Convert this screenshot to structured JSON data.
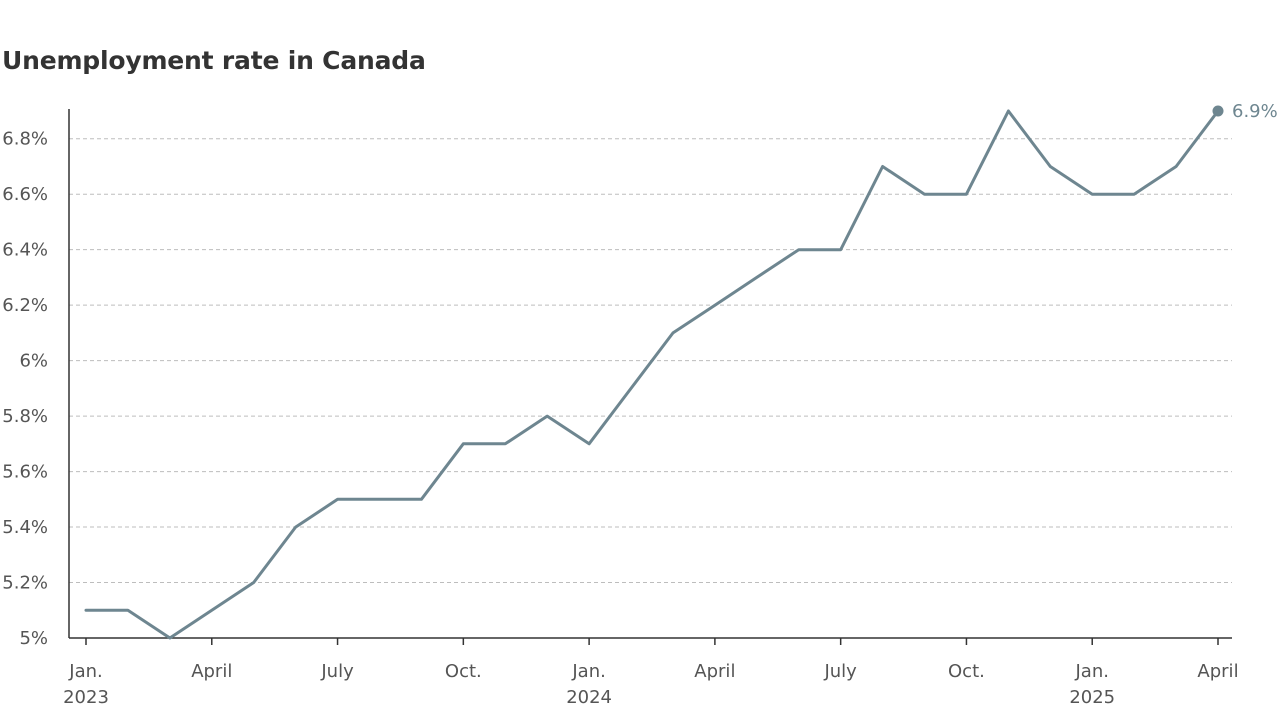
{
  "chart_data": {
    "type": "line",
    "title": "Unemployment rate in Canada",
    "xlabel": "",
    "ylabel": "",
    "ylim": [
      5.0,
      6.9
    ],
    "y_ticks": [
      {
        "value": 5.0,
        "label": "5%"
      },
      {
        "value": 5.2,
        "label": "5.2%"
      },
      {
        "value": 5.4,
        "label": "5.4%"
      },
      {
        "value": 5.6,
        "label": "5.6%"
      },
      {
        "value": 5.8,
        "label": "5.8%"
      },
      {
        "value": 6.0,
        "label": "6%"
      },
      {
        "value": 6.2,
        "label": "6.2%"
      },
      {
        "value": 6.4,
        "label": "6.4%"
      },
      {
        "value": 6.6,
        "label": "6.6%"
      },
      {
        "value": 6.8,
        "label": "6.8%"
      }
    ],
    "x_ticks": [
      {
        "index": 0,
        "label": "Jan.",
        "sublabel": "2023"
      },
      {
        "index": 3,
        "label": "April",
        "sublabel": ""
      },
      {
        "index": 6,
        "label": "July",
        "sublabel": ""
      },
      {
        "index": 9,
        "label": "Oct.",
        "sublabel": ""
      },
      {
        "index": 12,
        "label": "Jan.",
        "sublabel": "2024"
      },
      {
        "index": 15,
        "label": "April",
        "sublabel": ""
      },
      {
        "index": 18,
        "label": "July",
        "sublabel": ""
      },
      {
        "index": 21,
        "label": "Oct.",
        "sublabel": ""
      },
      {
        "index": 24,
        "label": "Jan.",
        "sublabel": "2025"
      },
      {
        "index": 27,
        "label": "April",
        "sublabel": ""
      }
    ],
    "x": [
      "2023-01",
      "2023-02",
      "2023-03",
      "2023-04",
      "2023-05",
      "2023-06",
      "2023-07",
      "2023-08",
      "2023-09",
      "2023-10",
      "2023-11",
      "2023-12",
      "2024-01",
      "2024-02",
      "2024-03",
      "2024-04",
      "2024-05",
      "2024-06",
      "2024-07",
      "2024-08",
      "2024-09",
      "2024-10",
      "2024-11",
      "2024-12",
      "2025-01",
      "2025-02",
      "2025-03",
      "2025-04"
    ],
    "series": [
      {
        "values": [
          5.1,
          5.1,
          5.0,
          5.1,
          5.2,
          5.4,
          5.5,
          5.5,
          5.5,
          5.7,
          5.7,
          5.8,
          5.7,
          5.9,
          6.1,
          6.2,
          6.3,
          6.4,
          6.4,
          6.7,
          6.6,
          6.6,
          6.9,
          6.7,
          6.6,
          6.6,
          6.7,
          6.9
        ],
        "color": "#6e8690"
      }
    ],
    "end_label": "6.9%",
    "grid": true,
    "legend": "none",
    "colors": {
      "line": "#6e8690",
      "grid": "#bdbdbd",
      "axis": "#333333",
      "tick_text": "#555555",
      "title": "#333333"
    }
  }
}
